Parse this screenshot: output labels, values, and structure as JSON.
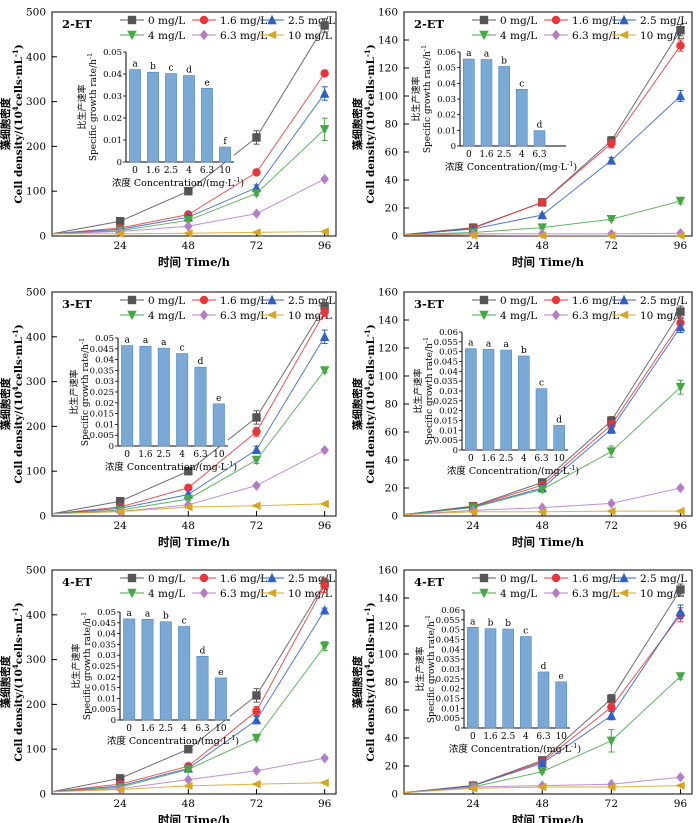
{
  "figure": {
    "x_axis_label": "时间 Time/h",
    "y_axis_label_zh": "藻细胞密度",
    "y_axis_label_en_a": "Cell density/(10",
    "y_axis_label_sup": "4",
    "y_axis_label_en_b": "cells·mL",
    "y_axis_label_en_c": "-1",
    "y_axis_label_en_d": ")",
    "inset_ylabel_zh": "比生产速率",
    "inset_ylabel_en": "Specific growth rate/h",
    "inset_ylabel_sup": "-1",
    "inset_xlabel": "浓度 Concentration/(mg·L",
    "inset_xlabel_sup": "-1",
    "inset_xlabel_end": ")"
  },
  "chart_data": [
    {
      "type": "line",
      "panel_label": "2-ET",
      "x": [
        0,
        24,
        48,
        72,
        96
      ],
      "xticks": [
        "24",
        "48",
        "72",
        "96"
      ],
      "ylim": [
        0,
        500
      ],
      "yticks": [
        "0",
        "100",
        "200",
        "300",
        "400",
        "500"
      ],
      "series": [
        {
          "name": "0 mg/L",
          "color": "#555555",
          "marker": "square",
          "values": [
            5,
            33,
            100,
            220,
            470
          ],
          "err": [
            0,
            3,
            4,
            15,
            15
          ]
        },
        {
          "name": "1.6 mg/L",
          "color": "#e8363a",
          "marker": "circle",
          "values": [
            5,
            18,
            48,
            142,
            363
          ],
          "err": [
            0,
            2,
            3,
            5,
            5
          ]
        },
        {
          "name": "2.5 mg/L",
          "color": "#2e60c8",
          "marker": "triangle-up",
          "values": [
            5,
            15,
            42,
            108,
            318
          ],
          "err": [
            0,
            2,
            3,
            6,
            15
          ]
        },
        {
          "name": "4 mg/L",
          "color": "#45a845",
          "marker": "triangle-down",
          "values": [
            5,
            12,
            35,
            95,
            238
          ],
          "err": [
            0,
            2,
            3,
            5,
            25
          ]
        },
        {
          "name": "6.3 mg/L",
          "color": "#b47cc8",
          "marker": "diamond",
          "values": [
            5,
            10,
            22,
            50,
            127
          ],
          "err": [
            0,
            1,
            2,
            3,
            4
          ]
        },
        {
          "name": "10 mg/L",
          "color": "#d9a521",
          "marker": "triangle-left",
          "values": [
            5,
            5,
            6,
            8,
            10
          ],
          "err": [
            0,
            1,
            1,
            1,
            1
          ]
        }
      ],
      "inset": {
        "type": "bar",
        "categories": [
          "0",
          "1.6",
          "2.5",
          "4",
          "6.3",
          "10"
        ],
        "values": [
          0.042,
          0.0408,
          0.0402,
          0.0393,
          0.0335,
          0.0068
        ],
        "letters": [
          "a",
          "b",
          "c",
          "d",
          "e",
          "f"
        ],
        "ylim": [
          0,
          0.05
        ],
        "yticks": [
          "0",
          "0.01",
          "0.02",
          "0.03",
          "0.04",
          "0.05"
        ]
      }
    },
    {
      "type": "line",
      "panel_label": "2-ET",
      "x": [
        0,
        24,
        48,
        72,
        96
      ],
      "xticks": [
        "24",
        "48",
        "72",
        "96"
      ],
      "ylim": [
        0,
        160
      ],
      "yticks": [
        "0",
        "20",
        "40",
        "60",
        "80",
        "100",
        "120",
        "140",
        "160"
      ],
      "series": [
        {
          "name": "0 mg/L",
          "color": "#555555",
          "marker": "square",
          "values": [
            1,
            6,
            24,
            68,
            147
          ],
          "err": [
            0,
            1,
            1,
            3,
            4
          ]
        },
        {
          "name": "1.6 mg/L",
          "color": "#e8363a",
          "marker": "circle",
          "values": [
            1,
            5.5,
            24,
            66,
            136
          ],
          "err": [
            0,
            1,
            1,
            3,
            4
          ]
        },
        {
          "name": "2.5 mg/L",
          "color": "#2e60c8",
          "marker": "triangle-up",
          "values": [
            1,
            5,
            15,
            54,
            100
          ],
          "err": [
            0,
            1,
            1,
            2,
            4
          ]
        },
        {
          "name": "4 mg/L",
          "color": "#45a845",
          "marker": "triangle-down",
          "values": [
            1,
            2.5,
            6,
            12,
            25
          ],
          "err": [
            0,
            1,
            1,
            1,
            2
          ]
        },
        {
          "name": "6.3 mg/L",
          "color": "#b47cc8",
          "marker": "diamond",
          "values": [
            1,
            1.5,
            1.5,
            1.5,
            2
          ],
          "err": [
            0,
            0.5,
            0.5,
            0.5,
            0.5
          ]
        },
        {
          "name": "10 mg/L",
          "color": "#d9a521",
          "marker": "triangle-left",
          "values": [
            1,
            0.5,
            0.3,
            0.3,
            0.3
          ],
          "err": [
            0,
            0.3,
            0.3,
            0.3,
            0.3
          ]
        }
      ],
      "inset": {
        "type": "bar",
        "categories": [
          "0",
          "1.6",
          "2.5",
          "4",
          "6.3"
        ],
        "values": [
          0.0555,
          0.0552,
          0.0508,
          0.0362,
          0.0098
        ],
        "letters": [
          "a",
          "a",
          "b",
          "c",
          "d"
        ],
        "ylim": [
          0,
          0.06
        ],
        "yticks": [
          "0",
          "0.01",
          "0.02",
          "0.03",
          "0.04",
          "0.05",
          "0.06"
        ]
      }
    },
    {
      "type": "line",
      "panel_label": "3-ET",
      "x": [
        0,
        24,
        48,
        72,
        96
      ],
      "xticks": [
        "24",
        "48",
        "72",
        "96"
      ],
      "ylim": [
        0,
        500
      ],
      "yticks": [
        "0",
        "100",
        "200",
        "300",
        "400",
        "500"
      ],
      "series": [
        {
          "name": "0 mg/L",
          "color": "#555555",
          "marker": "square",
          "values": [
            5,
            33,
            100,
            220,
            468
          ],
          "err": [
            0,
            3,
            4,
            15,
            15
          ]
        },
        {
          "name": "1.6 mg/L",
          "color": "#e8363a",
          "marker": "circle",
          "values": [
            5,
            20,
            63,
            188,
            455
          ],
          "err": [
            0,
            2,
            3,
            10,
            10
          ]
        },
        {
          "name": "2.5 mg/L",
          "color": "#2e60c8",
          "marker": "triangle-up",
          "values": [
            5,
            17,
            48,
            148,
            400
          ],
          "err": [
            0,
            2,
            3,
            8,
            15
          ]
        },
        {
          "name": "4 mg/L",
          "color": "#45a845",
          "marker": "triangle-down",
          "values": [
            5,
            13,
            38,
            125,
            325
          ],
          "err": [
            0,
            2,
            3,
            8,
            5
          ]
        },
        {
          "name": "6.3 mg/L",
          "color": "#b47cc8",
          "marker": "diamond",
          "values": [
            5,
            10,
            25,
            68,
            147
          ],
          "err": [
            0,
            1,
            2,
            3,
            4
          ]
        },
        {
          "name": "10 mg/L",
          "color": "#d9a521",
          "marker": "triangle-left",
          "values": [
            5,
            10,
            20,
            23,
            27
          ],
          "err": [
            0,
            1,
            2,
            2,
            2
          ]
        }
      ],
      "inset": {
        "type": "bar",
        "categories": [
          "0",
          "1.6",
          "2.5",
          "4",
          "6.3",
          "10"
        ],
        "values": [
          0.0465,
          0.0462,
          0.0453,
          0.0428,
          0.0365,
          0.0195
        ],
        "letters": [
          "a",
          "a",
          "a",
          "c",
          "d",
          "e"
        ],
        "ylim": [
          0,
          0.05
        ],
        "yticks": [
          "0",
          "0.005",
          "0.01",
          "0.015",
          "0.02",
          "0.025",
          "0.03",
          "0.035",
          "0.04",
          "0.045",
          "0.05"
        ]
      }
    },
    {
      "type": "line",
      "panel_label": "3-ET",
      "x": [
        0,
        24,
        48,
        72,
        96
      ],
      "xticks": [
        "24",
        "48",
        "72",
        "96"
      ],
      "ylim": [
        0,
        160
      ],
      "yticks": [
        "0",
        "20",
        "40",
        "60",
        "80",
        "100",
        "120",
        "140",
        "160"
      ],
      "series": [
        {
          "name": "0 mg/L",
          "color": "#555555",
          "marker": "square",
          "values": [
            1,
            7,
            24,
            68,
            146
          ],
          "err": [
            0,
            1,
            2,
            3,
            4
          ]
        },
        {
          "name": "1.6 mg/L",
          "color": "#e8363a",
          "marker": "circle",
          "values": [
            1,
            7,
            22,
            65,
            138
          ],
          "err": [
            0,
            1,
            2,
            3,
            4
          ]
        },
        {
          "name": "2.5 mg/L",
          "color": "#2e60c8",
          "marker": "triangle-up",
          "values": [
            1,
            6.5,
            20,
            62,
            135
          ],
          "err": [
            0,
            1,
            2,
            3,
            4
          ]
        },
        {
          "name": "4 mg/L",
          "color": "#45a845",
          "marker": "triangle-down",
          "values": [
            1,
            6,
            19,
            46,
            92
          ],
          "err": [
            0,
            1,
            2,
            4,
            5
          ]
        },
        {
          "name": "6.3 mg/L",
          "color": "#b47cc8",
          "marker": "diamond",
          "values": [
            1,
            4,
            6,
            9,
            20
          ],
          "err": [
            0,
            0.5,
            0.5,
            1,
            1
          ]
        },
        {
          "name": "10 mg/L",
          "color": "#d9a521",
          "marker": "triangle-left",
          "values": [
            1,
            3,
            3,
            3.5,
            3.5
          ],
          "err": [
            0,
            0.5,
            0.5,
            0.5,
            0.5
          ]
        }
      ],
      "inset": {
        "type": "bar",
        "categories": [
          "0",
          "1.6",
          "2.5",
          "4",
          "6.3",
          "10"
        ],
        "values": [
          0.0515,
          0.0512,
          0.0508,
          0.0478,
          0.0312,
          0.0125
        ],
        "letters": [
          "a",
          "a",
          "a",
          "b",
          "c",
          "d"
        ],
        "ylim": [
          0,
          0.06
        ],
        "yticks": [
          "0",
          "0.005",
          "0.01",
          "0.015",
          "0.02",
          "0.025",
          "0.03",
          "0.035",
          "0.04",
          "0.045",
          "0.05",
          "0.055",
          "0.06"
        ]
      }
    },
    {
      "type": "line",
      "panel_label": "4-ET",
      "x": [
        0,
        24,
        48,
        72,
        96
      ],
      "xticks": [
        "24",
        "48",
        "72",
        "96"
      ],
      "ylim": [
        0,
        500
      ],
      "yticks": [
        "0",
        "100",
        "200",
        "300",
        "400",
        "500"
      ],
      "series": [
        {
          "name": "0 mg/L",
          "color": "#555555",
          "marker": "square",
          "values": [
            5,
            35,
            100,
            220,
            470
          ],
          "err": [
            0,
            3,
            4,
            15,
            12
          ]
        },
        {
          "name": "1.6 mg/L",
          "color": "#e8363a",
          "marker": "circle",
          "values": [
            5,
            22,
            62,
            185,
            465
          ],
          "err": [
            0,
            2,
            3,
            10,
            15
          ]
        },
        {
          "name": "2.5 mg/L",
          "color": "#2e60c8",
          "marker": "triangle-up",
          "values": [
            5,
            18,
            57,
            165,
            410
          ],
          "err": [
            0,
            2,
            3,
            8,
            5
          ]
        },
        {
          "name": "4 mg/L",
          "color": "#45a845",
          "marker": "triangle-down",
          "values": [
            5,
            15,
            55,
            125,
            330
          ],
          "err": [
            0,
            2,
            3,
            5,
            10
          ]
        },
        {
          "name": "6.3 mg/L",
          "color": "#b47cc8",
          "marker": "diamond",
          "values": [
            5,
            12,
            32,
            52,
            80
          ],
          "err": [
            0,
            1,
            2,
            3,
            4
          ]
        },
        {
          "name": "10 mg/L",
          "color": "#d9a521",
          "marker": "triangle-left",
          "values": [
            5,
            10,
            18,
            22,
            25
          ],
          "err": [
            0,
            1,
            2,
            2,
            2
          ]
        }
      ],
      "inset": {
        "type": "bar",
        "categories": [
          "0",
          "1.6",
          "2.5",
          "4",
          "6.3",
          "10"
        ],
        "values": [
          0.0468,
          0.0466,
          0.0455,
          0.0433,
          0.0295,
          0.0195
        ],
        "letters": [
          "a",
          "a",
          "b",
          "c",
          "d",
          "e"
        ],
        "ylim": [
          0,
          0.05
        ],
        "yticks": [
          "0",
          "0.005",
          "0.01",
          "0.015",
          "0.02",
          "0.025",
          "0.03",
          "0.035",
          "0.04",
          "0.045",
          "0.05"
        ]
      }
    },
    {
      "type": "line",
      "panel_label": "4-ET",
      "x": [
        0,
        24,
        48,
        72,
        96
      ],
      "xticks": [
        "24",
        "48",
        "72",
        "96"
      ],
      "ylim": [
        0,
        160
      ],
      "yticks": [
        "0",
        "20",
        "40",
        "60",
        "80",
        "100",
        "120",
        "140",
        "160"
      ],
      "series": [
        {
          "name": "0 mg/L",
          "color": "#555555",
          "marker": "square",
          "values": [
            1,
            6,
            24,
            68,
            146
          ],
          "err": [
            0,
            1,
            2,
            3,
            4
          ]
        },
        {
          "name": "1.6 mg/L",
          "color": "#e8363a",
          "marker": "circle",
          "values": [
            1,
            6,
            23,
            62,
            128
          ],
          "err": [
            0,
            1,
            2,
            3,
            5
          ]
        },
        {
          "name": "2.5 mg/L",
          "color": "#2e60c8",
          "marker": "triangle-up",
          "values": [
            1,
            6,
            22,
            56,
            130
          ],
          "err": [
            0,
            1,
            2,
            3,
            5
          ]
        },
        {
          "name": "4 mg/L",
          "color": "#45a845",
          "marker": "triangle-down",
          "values": [
            1,
            5,
            16,
            38,
            84
          ],
          "err": [
            0,
            1,
            1,
            8,
            2
          ]
        },
        {
          "name": "6.3 mg/L",
          "color": "#b47cc8",
          "marker": "diamond",
          "values": [
            1,
            5,
            6,
            7,
            12
          ],
          "err": [
            0,
            0.5,
            0.5,
            0.5,
            1
          ]
        },
        {
          "name": "10 mg/L",
          "color": "#d9a521",
          "marker": "triangle-left",
          "values": [
            1,
            4,
            5,
            5,
            6
          ],
          "err": [
            0,
            0.5,
            0.5,
            0.5,
            0.5
          ]
        }
      ],
      "inset": {
        "type": "bar",
        "categories": [
          "0",
          "1.6",
          "2.5",
          "4",
          "6.3",
          "10"
        ],
        "values": [
          0.0512,
          0.0505,
          0.0503,
          0.0465,
          0.0285,
          0.0235
        ],
        "letters": [
          "a",
          "b",
          "b",
          "c",
          "d",
          "e"
        ],
        "ylim": [
          0,
          0.06
        ],
        "yticks": [
          "0",
          "0.005",
          "0.01",
          "0.015",
          "0.02",
          "0.025",
          "0.03",
          "0.035",
          "0.04",
          "0.045",
          "0.05",
          "0.055",
          "0.06"
        ]
      }
    }
  ]
}
